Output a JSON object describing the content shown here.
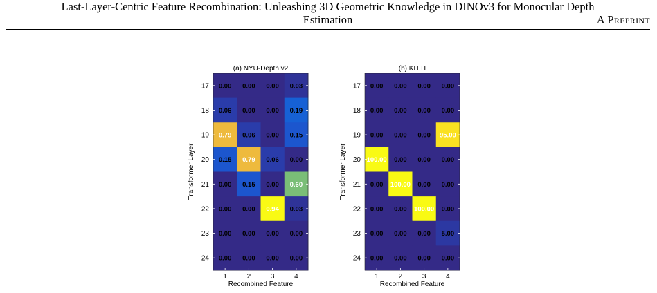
{
  "header": {
    "line1": "Last-Layer-Centric Feature Recombination: Unleashing 3D Geometric Knowledge in DINOv3 for Monocular Depth",
    "line2": "Estimation",
    "tag": "A Preprint"
  },
  "chart_data": [
    {
      "type": "heatmap",
      "title": "(a) NYU-Depth v2",
      "xlabel": "Recombined Feature",
      "ylabel": "Transformer Layer",
      "x_categories": [
        "1",
        "2",
        "3",
        "4"
      ],
      "y_categories": [
        "17",
        "18",
        "19",
        "20",
        "21",
        "22",
        "23",
        "24"
      ],
      "values": [
        [
          "0.00",
          "0.00",
          "0.00",
          "0.03"
        ],
        [
          "0.06",
          "0.00",
          "0.00",
          "0.19"
        ],
        [
          "0.79",
          "0.06",
          "0.00",
          "0.15"
        ],
        [
          "0.15",
          "0.79",
          "0.06",
          "0.00"
        ],
        [
          "0.00",
          "0.15",
          "0.00",
          "0.60"
        ],
        [
          "0.00",
          "0.00",
          "0.94",
          "0.03"
        ],
        [
          "0.00",
          "0.00",
          "0.00",
          "0.00"
        ],
        [
          "0.00",
          "0.00",
          "0.00",
          "0.00"
        ]
      ],
      "vmax": 0.94,
      "grid": false,
      "colormap": "parula"
    },
    {
      "type": "heatmap",
      "title": "(b) KITTI",
      "xlabel": "Recombined Feature",
      "ylabel": "Transformer Layer",
      "x_categories": [
        "1",
        "2",
        "3",
        "4"
      ],
      "y_categories": [
        "17",
        "18",
        "19",
        "20",
        "21",
        "22",
        "23",
        "24"
      ],
      "values": [
        [
          "0.00",
          "0.00",
          "0.00",
          "0.00"
        ],
        [
          "0.00",
          "0.00",
          "0.00",
          "0.00"
        ],
        [
          "0.00",
          "0.00",
          "0.00",
          "95.00"
        ],
        [
          "100.00",
          "0.00",
          "0.00",
          "0.00"
        ],
        [
          "0.00",
          "100.00",
          "0.00",
          "0.00"
        ],
        [
          "0.00",
          "0.00",
          "100.00",
          "0.00"
        ],
        [
          "0.00",
          "0.00",
          "0.00",
          "5.00"
        ],
        [
          "0.00",
          "0.00",
          "0.00",
          "0.00"
        ]
      ],
      "vmax": 100,
      "grid": false,
      "colormap": "parula"
    }
  ]
}
